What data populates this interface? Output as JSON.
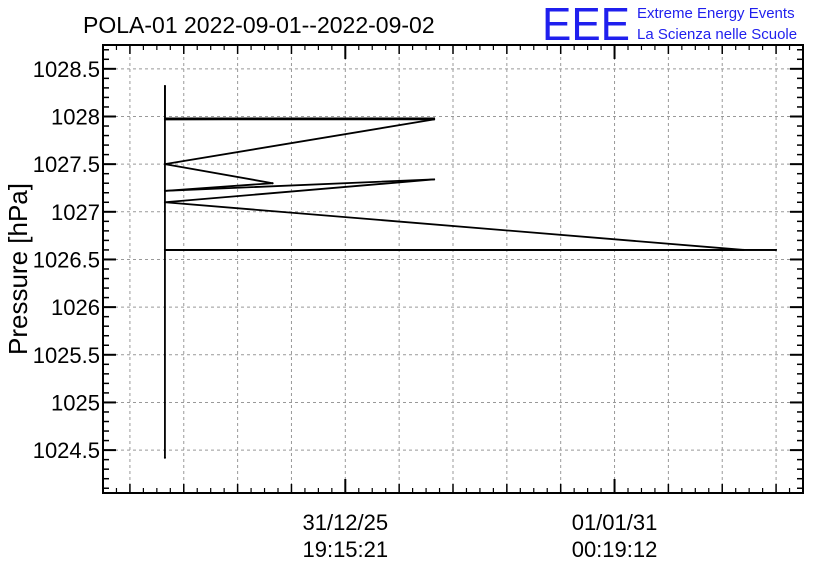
{
  "colors": {
    "brand": "#1f1fee",
    "line": "#000000",
    "grid": "#999999"
  },
  "header": {
    "title": "POLA-01 2022-09-01--2022-09-02",
    "logo_letters": "EEE",
    "logo_line1": "Extreme Energy Events",
    "logo_line2": "La Scienza nelle Scuole"
  },
  "chart_data": {
    "type": "line",
    "title": "POLA-01 2022-09-01--2022-09-02",
    "xlabel": "",
    "ylabel": "Pressure [hPa]",
    "ylim": [
      1024.05,
      1028.75
    ],
    "yticks": [
      1024.5,
      1025,
      1025.5,
      1026,
      1026.5,
      1027,
      1027.5,
      1028,
      1028.5
    ],
    "ytick_labels": [
      "1024.5",
      "1025",
      "1025.5",
      "1026",
      "1026.5",
      "1027",
      "1027.5",
      "1028",
      "1028.5"
    ],
    "xlim": [
      -0.9,
      1.7
    ],
    "xticks": [
      {
        "x": 0,
        "date": "31/12/25",
        "time": "19:15:21"
      },
      {
        "x": 1,
        "date": "01/01/31",
        "time": "00:19:12"
      }
    ],
    "grid": true,
    "series": [
      {
        "x": [
          -0.67,
          -0.67,
          -0.67,
          0.33,
          -0.67,
          0.33,
          -0.67,
          -0.27,
          -0.67,
          0.33,
          -0.67,
          1.48,
          -0.67,
          1.6,
          -0.67
        ],
        "y": [
          1024.42,
          1028.32,
          1027.98,
          1027.98,
          1027.97,
          1027.97,
          1027.5,
          1027.3,
          1027.22,
          1027.34,
          1027.1,
          1026.6,
          1026.6,
          1026.6,
          1026.6
        ]
      }
    ]
  }
}
